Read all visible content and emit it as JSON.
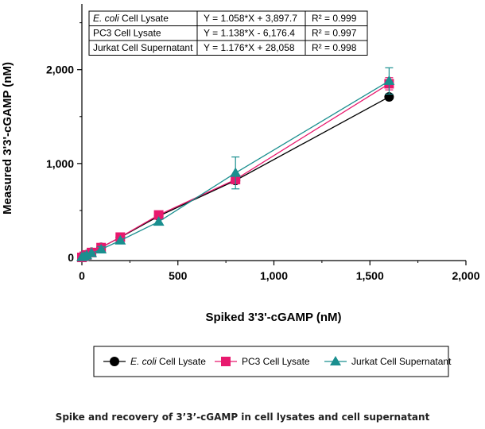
{
  "chart_data": {
    "type": "scatter",
    "xlabel": "Spiked 3'3'-cGAMP (nM)",
    "ylabel": "Measured 3'3'-cGAMP (nM)",
    "xlim": [
      0,
      2000
    ],
    "ylim": [
      -20,
      2700
    ],
    "xticks": [
      0,
      500,
      1000,
      1500,
      2000
    ],
    "xtick_labels": [
      "0",
      "500",
      "1,000",
      "1,500",
      "2,000"
    ],
    "yticks": [
      0,
      1000,
      2000
    ],
    "ytick_labels": [
      "0",
      "1,000",
      "2,000"
    ],
    "legend_position": "bottom",
    "series": [
      {
        "name_italic": "E. coli",
        "name_rest": " Cell Lysate",
        "color": "#000000",
        "marker": "circle",
        "x": [
          0,
          12.5,
          25,
          50,
          100,
          200,
          400,
          800,
          1600
        ],
        "y": [
          2,
          14,
          30,
          55,
          107,
          213,
          440,
          820,
          1710
        ],
        "err": [
          0,
          0,
          0,
          0,
          0,
          0,
          0,
          20,
          0
        ]
      },
      {
        "name_italic": "",
        "name_rest": "PC3 Cell Lysate",
        "color": "#e8196e",
        "marker": "square",
        "x": [
          0,
          12.5,
          25,
          50,
          100,
          200,
          400,
          800,
          1600
        ],
        "y": [
          0,
          12,
          26,
          52,
          104,
          216,
          452,
          830,
          1850
        ],
        "err": [
          0,
          0,
          0,
          0,
          0,
          0,
          0,
          0,
          65
        ]
      },
      {
        "name_italic": "",
        "name_rest": "Jurkat Cell Supernatant",
        "color": "#1a8f8f",
        "marker": "triangle",
        "x": [
          0,
          12.5,
          25,
          50,
          100,
          200,
          400,
          800,
          1600
        ],
        "y": [
          3,
          10,
          22,
          45,
          85,
          180,
          380,
          900,
          1880
        ],
        "err": [
          0,
          0,
          0,
          0,
          30,
          0,
          0,
          170,
          140
        ]
      }
    ],
    "equations": [
      {
        "name_italic": "E. coli",
        "name_rest": " Cell Lysate",
        "equation": "Y = 1.058*X + 3,897.7",
        "r2": "R² = 0.999"
      },
      {
        "name_italic": "",
        "name_rest": "PC3 Cell Lysate",
        "equation": "Y = 1.138*X - 6,176.4",
        "r2": "R² = 0.997"
      },
      {
        "name_italic": "",
        "name_rest": "Jurkat Cell Supernatant",
        "equation": "Y = 1.176*X + 28,058",
        "r2": "R² = 0.998"
      }
    ]
  },
  "caption": "Spike and recovery of 3’3’-cGAMP in cell lysates and cell supernatant"
}
